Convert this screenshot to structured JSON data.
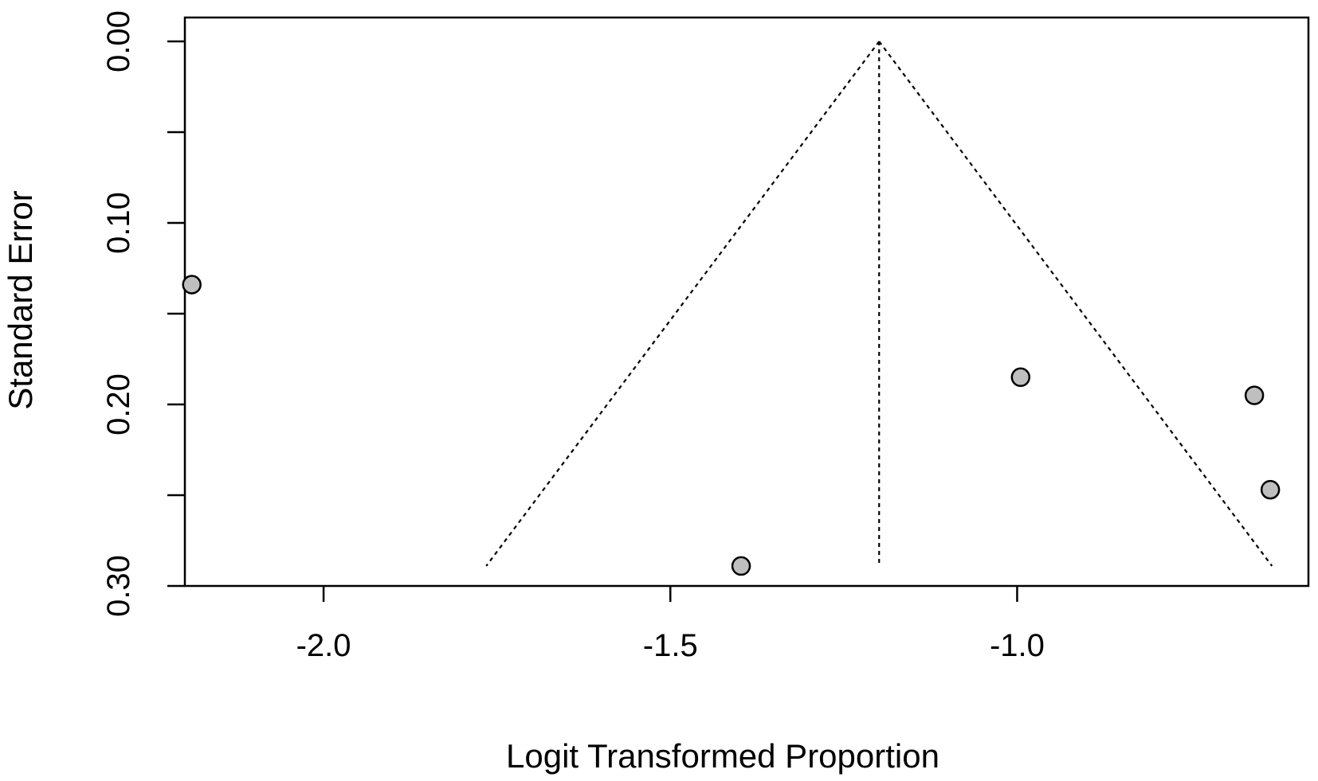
{
  "chart_data": {
    "type": "scatter",
    "subtype": "funnel",
    "title": "",
    "xlabel": "Logit Transformed Proportion",
    "ylabel": "Standard Error",
    "xlim": [
      -2.2,
      -0.58
    ],
    "ylim": [
      0.0,
      0.3
    ],
    "y_reversed": true,
    "x_ticks": [
      -2.0,
      -1.5,
      -1.0
    ],
    "x_tick_labels": [
      "-2.0",
      "-1.5",
      "-1.0"
    ],
    "y_ticks": [
      0.0,
      0.05,
      0.1,
      0.15,
      0.2,
      0.25,
      0.3
    ],
    "y_tick_labels": [
      "0.00",
      "",
      "0.10",
      "",
      "0.20",
      "",
      "0.30"
    ],
    "grid": false,
    "points": [
      {
        "x": -2.19,
        "y": 0.134
      },
      {
        "x": -1.398,
        "y": 0.289
      },
      {
        "x": -0.995,
        "y": 0.185
      },
      {
        "x": -0.658,
        "y": 0.195
      },
      {
        "x": -0.635,
        "y": 0.247
      }
    ],
    "pooled_estimate": -1.199,
    "funnel_se_max": 0.289,
    "colors": {
      "point_fill": "#bfbfbf",
      "point_stroke": "#000000",
      "line": "#000000"
    }
  }
}
